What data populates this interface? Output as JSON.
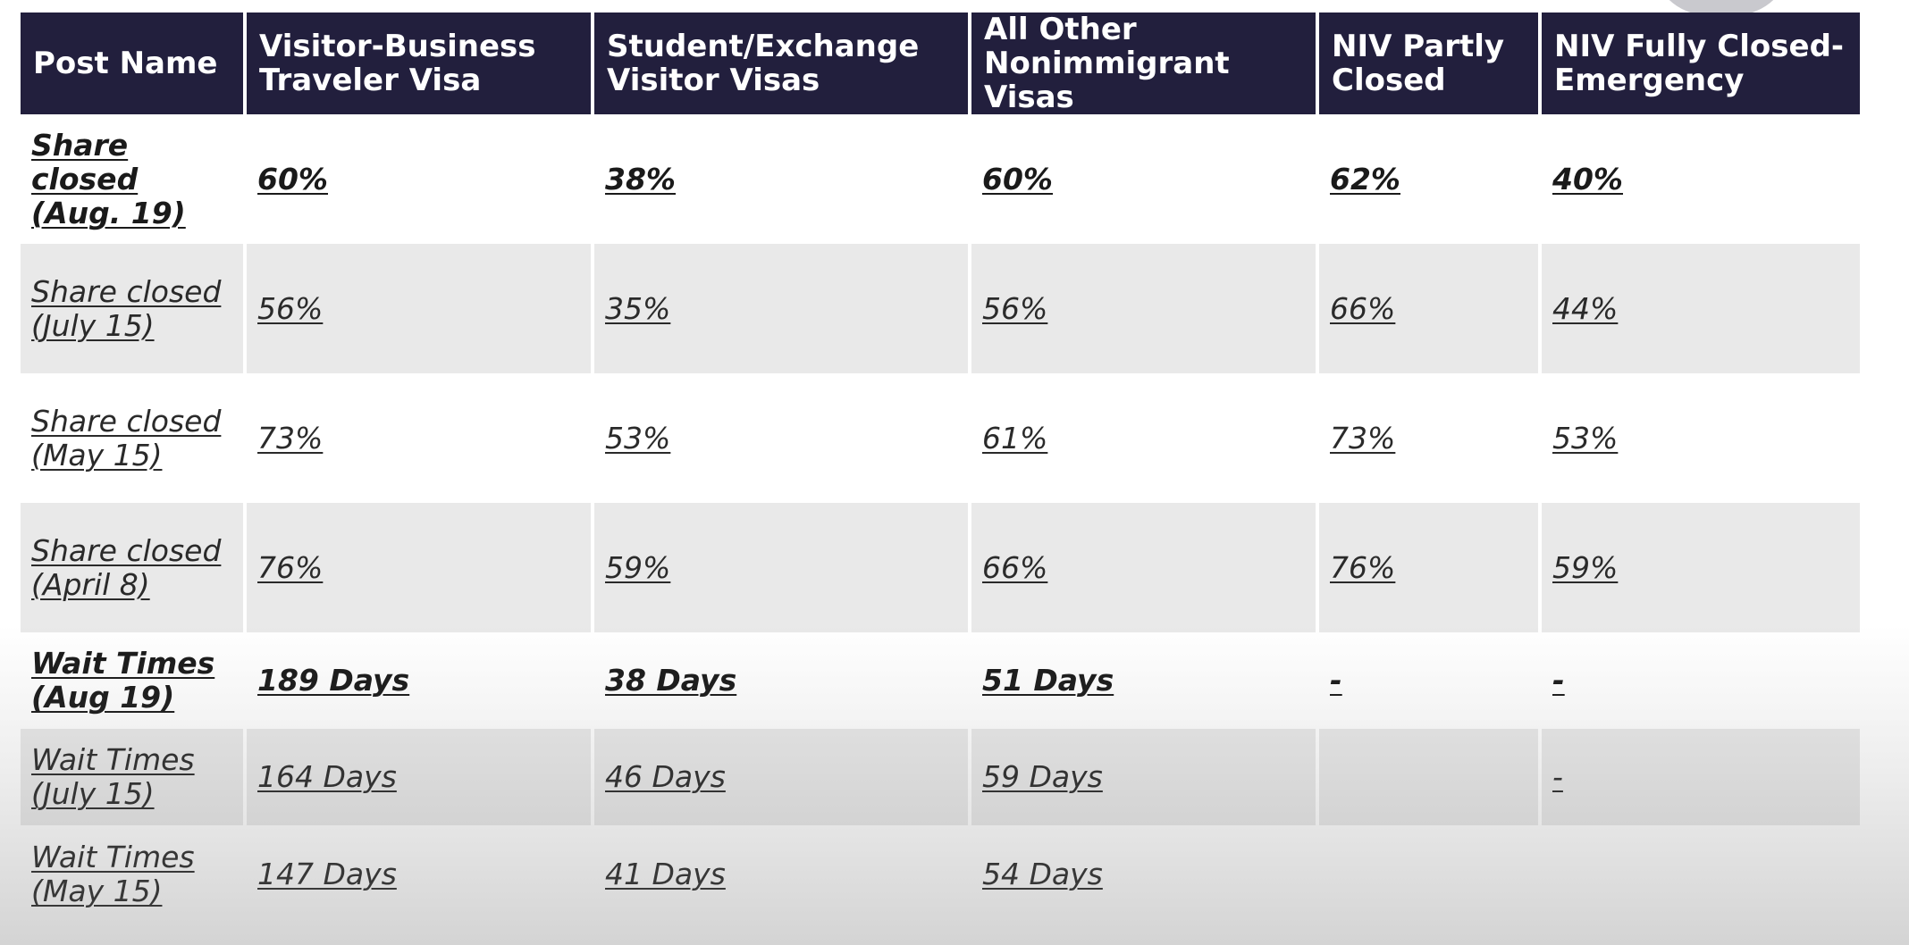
{
  "table": {
    "headers": [
      "Post Name",
      "Visitor-Business Traveler Visa",
      "Student/Exchange Visitor Visas",
      "All Other Nonimmigrant Visas",
      "NIV Partly Closed",
      "NIV Fully Closed-Emergency"
    ],
    "rows": [
      [
        "Share closed (Aug. 19)",
        "60%",
        "38%",
        "60%",
        "62%",
        "40%"
      ],
      [
        "Share closed (July 15)",
        "56%",
        "35%",
        "56%",
        "66%",
        "44%"
      ],
      [
        "Share closed (May 15)",
        "73%",
        "53%",
        "61%",
        "73%",
        "53%"
      ],
      [
        "Share closed (April 8)",
        "76%",
        "59%",
        "66%",
        "76%",
        "59%"
      ],
      [
        "Wait Times (Aug 19)",
        "189 Days",
        "38 Days",
        "51 Days",
        "-",
        "-"
      ],
      [
        "Wait Times (July 15)",
        "164 Days",
        "46 Days",
        "59 Days",
        "",
        "-"
      ],
      [
        "Wait Times (May 15)",
        "147 Days",
        "41 Days",
        "54 Days",
        "",
        ""
      ]
    ]
  },
  "colors": {
    "header_bg": "#221f3d",
    "header_text": "#ffffff",
    "row_alt_bg": "#e9e9e9"
  }
}
